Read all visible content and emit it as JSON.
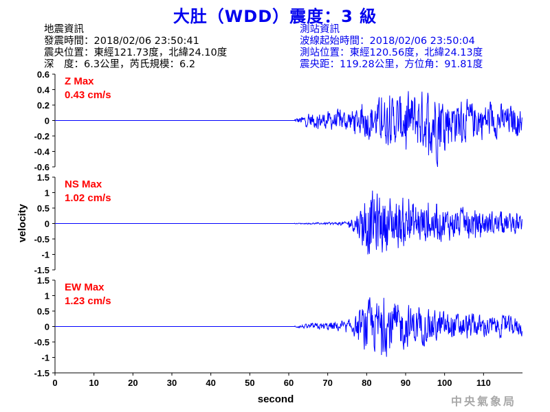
{
  "header": {
    "title": "大肚（WDD）震度：3 級"
  },
  "earthquake_info": {
    "heading": "地震資訊",
    "origin_time": "發震時間：2018/02/06 23:50:41",
    "epicenter": "震央位置：東經121.73度，北緯24.10度",
    "depth_magnitude": "深　度：6.3公里，芮氏規模：6.2"
  },
  "station_info": {
    "heading": "測站資訊",
    "wave_start": "波線起始時間：2018/02/06 23:50:04",
    "station_location": "測站位置：東經120.56度，北緯24.13度",
    "distance_azimuth": "震央距：119.28公里，方位角：91.81度"
  },
  "logo_text": "中央氣象局",
  "chart_data": {
    "type": "line",
    "xlabel": "second",
    "ylabel": "velocity",
    "xlim": [
      0,
      120
    ],
    "xticks": [
      0,
      10,
      20,
      30,
      40,
      50,
      60,
      70,
      80,
      90,
      100,
      110
    ],
    "line_color": "#0000ff",
    "label_color": "#ff0000",
    "envelope_times": [
      0,
      60,
      62,
      66,
      70,
      75,
      78,
      80,
      85,
      90,
      95,
      98,
      100,
      105,
      110,
      120
    ],
    "panels": [
      {
        "component": "Z",
        "label": "Z Max",
        "max_text": "0.43 cm/s",
        "ylim": [
          -0.6,
          0.6
        ],
        "yticks": [
          "0.6",
          "0.4",
          "0.2",
          "0",
          "-0.2",
          "-0.4",
          "-0.6"
        ],
        "ytick_values": [
          0.6,
          0.4,
          0.2,
          0,
          -0.2,
          -0.4,
          -0.6
        ],
        "envelope": [
          0,
          0,
          0.03,
          0.08,
          0.1,
          0.12,
          0.15,
          0.2,
          0.25,
          0.3,
          0.33,
          0.43,
          0.3,
          0.22,
          0.2,
          0.15
        ]
      },
      {
        "component": "NS",
        "label": "NS Max",
        "max_text": "1.02 cm/s",
        "ylim": [
          -1.5,
          1.5
        ],
        "yticks": [
          "1.5",
          "1",
          "0.5",
          "0",
          "-0.5",
          "-1",
          "-1.5"
        ],
        "ytick_values": [
          1.5,
          1,
          0.5,
          0,
          -0.5,
          -1,
          -1.5
        ],
        "envelope": [
          0,
          0,
          0.01,
          0.02,
          0.03,
          0.05,
          0.4,
          0.95,
          0.8,
          0.65,
          0.55,
          0.5,
          0.45,
          0.4,
          0.35,
          0.25
        ]
      },
      {
        "component": "EW",
        "label": "EW Max",
        "max_text": "1.23 cm/s",
        "ylim": [
          -1.5,
          1.5
        ],
        "yticks": [
          "1.5",
          "1",
          "0.5",
          "0",
          "-0.5",
          "-1",
          "-1.5"
        ],
        "ytick_values": [
          1.5,
          1,
          0.5,
          0,
          -0.5,
          -1,
          -1.5
        ],
        "envelope": [
          0,
          0,
          0.03,
          0.08,
          0.12,
          0.15,
          0.35,
          0.7,
          0.75,
          0.6,
          0.45,
          0.45,
          0.4,
          0.35,
          0.3,
          0.25
        ]
      }
    ]
  }
}
